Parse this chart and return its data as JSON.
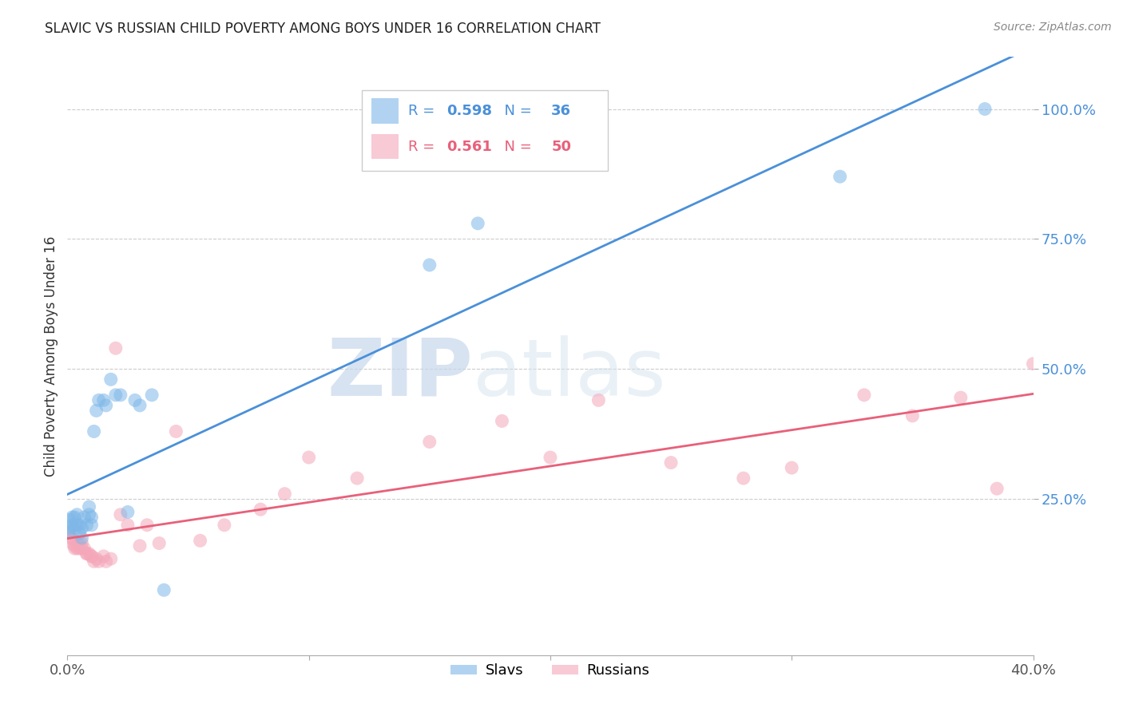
{
  "title": "SLAVIC VS RUSSIAN CHILD POVERTY AMONG BOYS UNDER 16 CORRELATION CHART",
  "source": "Source: ZipAtlas.com",
  "ylabel": "Child Poverty Among Boys Under 16",
  "xlim": [
    0.0,
    0.4
  ],
  "ylim": [
    -0.05,
    1.1
  ],
  "x_ticks": [
    0.0,
    0.1,
    0.2,
    0.3,
    0.4
  ],
  "x_tick_labels": [
    "0.0%",
    "",
    "",
    "",
    "40.0%"
  ],
  "y_ticks": [
    0.25,
    0.5,
    0.75,
    1.0
  ],
  "y_tick_labels": [
    "25.0%",
    "50.0%",
    "75.0%",
    "100.0%"
  ],
  "slavs_color": "#7EB7E8",
  "russians_color": "#F4A7B9",
  "trendline_slavs_color": "#4A90D9",
  "trendline_russians_color": "#E8607A",
  "slavs_R": 0.598,
  "slavs_N": 36,
  "russians_R": 0.561,
  "russians_N": 50,
  "watermark_zip": "ZIP",
  "watermark_atlas": "atlas",
  "background_color": "#FFFFFF",
  "grid_color": "#CCCCCC",
  "slavs_x": [
    0.0005,
    0.001,
    0.001,
    0.002,
    0.002,
    0.003,
    0.003,
    0.004,
    0.004,
    0.005,
    0.005,
    0.006,
    0.006,
    0.007,
    0.008,
    0.009,
    0.009,
    0.01,
    0.01,
    0.011,
    0.012,
    0.013,
    0.015,
    0.016,
    0.018,
    0.02,
    0.022,
    0.025,
    0.028,
    0.03,
    0.035,
    0.04,
    0.15,
    0.17,
    0.32,
    0.38
  ],
  "slavs_y": [
    0.185,
    0.195,
    0.21,
    0.2,
    0.215,
    0.195,
    0.215,
    0.2,
    0.22,
    0.185,
    0.2,
    0.175,
    0.195,
    0.215,
    0.2,
    0.22,
    0.235,
    0.2,
    0.215,
    0.38,
    0.42,
    0.44,
    0.44,
    0.43,
    0.48,
    0.45,
    0.45,
    0.225,
    0.44,
    0.43,
    0.45,
    0.075,
    0.7,
    0.78,
    0.87,
    1.0
  ],
  "russians_x": [
    0.0005,
    0.001,
    0.001,
    0.002,
    0.002,
    0.003,
    0.003,
    0.004,
    0.004,
    0.005,
    0.005,
    0.006,
    0.006,
    0.007,
    0.008,
    0.008,
    0.009,
    0.01,
    0.01,
    0.011,
    0.012,
    0.013,
    0.015,
    0.016,
    0.018,
    0.02,
    0.022,
    0.025,
    0.03,
    0.033,
    0.038,
    0.045,
    0.055,
    0.065,
    0.08,
    0.09,
    0.1,
    0.12,
    0.15,
    0.18,
    0.2,
    0.22,
    0.25,
    0.28,
    0.3,
    0.33,
    0.35,
    0.37,
    0.385,
    0.4
  ],
  "russians_y": [
    0.185,
    0.175,
    0.185,
    0.165,
    0.175,
    0.155,
    0.16,
    0.155,
    0.165,
    0.155,
    0.165,
    0.155,
    0.165,
    0.155,
    0.145,
    0.145,
    0.145,
    0.14,
    0.14,
    0.13,
    0.135,
    0.13,
    0.14,
    0.13,
    0.135,
    0.54,
    0.22,
    0.2,
    0.16,
    0.2,
    0.165,
    0.38,
    0.17,
    0.2,
    0.23,
    0.26,
    0.33,
    0.29,
    0.36,
    0.4,
    0.33,
    0.44,
    0.32,
    0.29,
    0.31,
    0.45,
    0.41,
    0.445,
    0.27,
    0.51
  ]
}
